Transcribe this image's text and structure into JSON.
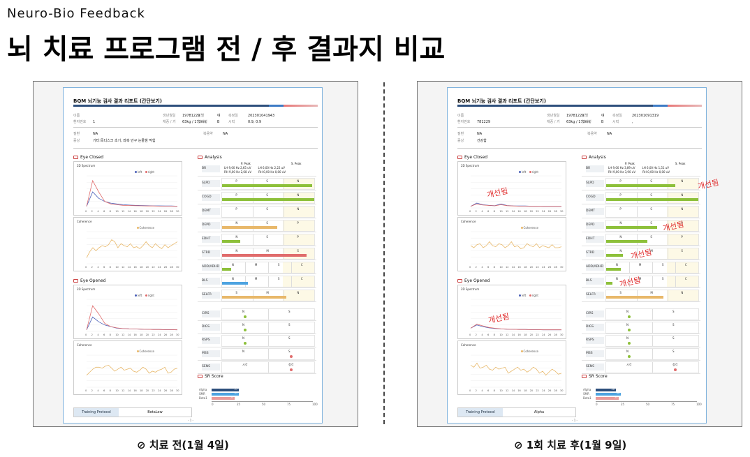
{
  "header": {
    "kicker": "Neuro-Bio Feedback",
    "title": "뇌 치료 프로그램 전 / 후 결과지 비교"
  },
  "captions": {
    "before": "⊘ 치료 전(1월 4일)",
    "after": "⊘ 1회 치료 후(1월 9일)"
  },
  "improved_label": "개선됨",
  "colors": {
    "left": "#4a5fb8",
    "right": "#e06c6c",
    "coherence": "#e8b86a",
    "green": "#8dc03a",
    "orange": "#e8b86a",
    "red": "#e06c6c",
    "blue": "#4da3e0"
  },
  "reports": [
    {
      "report_title": "BQM 뇌기능 검사 결과 리포트 (간단보기)",
      "info": {
        "name_label": "이름",
        "name": "",
        "birth_label": "생년월일",
        "birth": "19781229",
        "sex_label": "성별",
        "sex": "여",
        "date_label": "측정일",
        "date": "202301041943",
        "patient_no_label": "환자번호",
        "patient_no": "1",
        "body_label": "체중 / 키",
        "body": "63kg / 173cm",
        "blood_label": "혈액형",
        "blood": "B",
        "vision_label": "시력",
        "vision": "0.9, 0.9",
        "disease_label": "질환",
        "disease": "NA",
        "med_label": "복용약",
        "med": "NA",
        "symptom_label": "증상",
        "symptom": "기타:목디스크 초기, 좌측 안구 눈물샘 막힘"
      },
      "sections": {
        "eye_closed": "Eye Closed",
        "eye_opened": "Eye Opened",
        "analysis": "Analysis",
        "sr": "SR Score"
      },
      "panels": {
        "spectrum": "2D Spectrum",
        "coherence": "Coherence",
        "left": "left",
        "right": "right",
        "coh_legend": "Coherence"
      },
      "br": {
        "label": "BR",
        "p_peak": "P. Peak",
        "s_peak": "S. Peak",
        "lh": "LH",
        "rh": "RH",
        "lh_p": "9,00",
        "lh_p2": "2,65",
        "rh_p": "9,00",
        "rh_p2": "2,68",
        "lh_s": "6,00",
        "lh_s2": "2,22",
        "rh_s": "0,00",
        "rh_s2": "0,00",
        "hz": "Hz",
        "uv": "uV"
      },
      "metrics": [
        {
          "label": "SLPD",
          "ticks": [
            "P",
            "S",
            "N"
          ],
          "bar": 0.98,
          "color": "green"
        },
        {
          "label": "COGD",
          "ticks": [
            "P",
            "S",
            "N"
          ],
          "bar": 1.0,
          "color": "green"
        },
        {
          "label": "DEMT",
          "ticks": [
            "P",
            "S",
            "N"
          ],
          "bar": 0,
          "color": "green"
        },
        {
          "label": "DEPD",
          "ticks": [
            "N",
            "S",
            "P"
          ],
          "bar": 0.6,
          "color": "orange"
        },
        {
          "label": "EDHT",
          "ticks": [
            "N",
            "S",
            "P"
          ],
          "bar": 0.2,
          "color": "green"
        },
        {
          "label": "STRD",
          "ticks": [
            "N",
            "M",
            "S"
          ],
          "bar": 0.92,
          "color": "red"
        },
        {
          "label": "ADD/ADHD",
          "ticks": [
            "N",
            "M",
            "S",
            "C"
          ],
          "bar": 0.1,
          "color": "green"
        },
        {
          "label": "BLS",
          "ticks": [
            "N",
            "M",
            "S",
            "C"
          ],
          "bar": 0.28,
          "color": "blue"
        },
        {
          "label": "SELFR",
          "ticks": [
            "S",
            "M",
            "N"
          ],
          "bar": 0.7,
          "color": "orange"
        }
      ],
      "dots": [
        {
          "label": "CIRS",
          "ticks": [
            "N",
            "S"
          ],
          "pos": 0.25,
          "color": "green"
        },
        {
          "label": "DIGS",
          "ticks": [
            "N",
            "S"
          ],
          "pos": 0.25,
          "color": "green"
        },
        {
          "label": "RSPS",
          "ticks": [
            "N",
            "S"
          ],
          "pos": 0.25,
          "color": "green"
        },
        {
          "label": "MSS",
          "ticks": [
            "N",
            "S"
          ],
          "pos": 0.75,
          "color": "red"
        },
        {
          "label": "SENS",
          "ticks": [
            "시각",
            "청각"
          ],
          "pos": 0.75,
          "color": "red"
        }
      ],
      "sr": {
        "labels": [
          "Alpha",
          "SMR",
          "Beta1"
        ],
        "values": [
          27,
          27,
          23
        ],
        "axis": [
          "0",
          "25",
          "50",
          "75",
          "100"
        ],
        "vals_text": [
          "27",
          "27",
          "23"
        ]
      },
      "training": {
        "label": "Training Protocol",
        "value": "BetaLow"
      },
      "page": "- 1 -",
      "spectrum_closed": {
        "left": [
          1,
          10,
          6,
          4,
          3,
          2.5,
          2,
          1.8,
          1.6,
          1.5,
          1.4,
          1.3,
          1.3,
          1.2,
          1.2,
          1.1
        ],
        "right": [
          1,
          17,
          10,
          4,
          2.5,
          2,
          1.6,
          1.5,
          1.4,
          1.3,
          1.2,
          1.2,
          1.1,
          1.1,
          1.1,
          1.0
        ]
      },
      "coh_closed": [
        0.3,
        0.6,
        0.8,
        0.65,
        0.8,
        0.9,
        0.85,
        0.95,
        1.2,
        1.1,
        0.8,
        1.0,
        0.9,
        0.85,
        1.0,
        0.8,
        0.85,
        0.75,
        0.9,
        1.1,
        0.9,
        0.8,
        1.0,
        0.85,
        0.75,
        0.95,
        0.8,
        0.9,
        1.0,
        1.1
      ],
      "spectrum_opened": {
        "left": [
          1,
          9,
          6,
          4,
          3,
          2,
          1.8,
          1.6,
          1.5,
          1.4,
          1.3,
          1.2,
          1.2,
          1.1,
          1.1,
          1.0
        ],
        "right": [
          1,
          16,
          11,
          5,
          3,
          2.2,
          1.8,
          1.6,
          1.5,
          1.4,
          1.3,
          1.2,
          1.2,
          1.1,
          1.1,
          1.0
        ]
      },
      "coh_opened": [
        0.6,
        0.75,
        0.9,
        1.0,
        1.0,
        0.95,
        1.05,
        1.1,
        0.95,
        0.8,
        0.9,
        1.0,
        0.85,
        0.9,
        0.95,
        0.8,
        0.75,
        0.85,
        1.0,
        0.9,
        0.7,
        0.8,
        0.75,
        0.85,
        0.9,
        1.0,
        0.7,
        0.75,
        0.9,
        0.95
      ],
      "improved_marks": []
    },
    {
      "report_title": "BQM 뇌기능 검사 결과 리포트 (간단보기)",
      "info": {
        "name_label": "이름",
        "name": "",
        "birth_label": "생년월일",
        "birth": "19781229",
        "sex_label": "성별",
        "sex": "여",
        "date_label": "측정일",
        "date": "202301091319",
        "patient_no_label": "환자번호",
        "patient_no": "781229",
        "body_label": "체중 / 키",
        "body": "63kg / 173cm",
        "blood_label": "혈액형",
        "blood": "B",
        "vision_label": "시력",
        "vision": ",",
        "disease_label": "질환",
        "disease": "NA",
        "med_label": "복용약",
        "med": "NA",
        "symptom_label": "증상",
        "symptom": "건강함"
      },
      "sections": {
        "eye_closed": "Eye Closed",
        "eye_opened": "Eye Opened",
        "analysis": "Analysis",
        "sr": "SR Score"
      },
      "panels": {
        "spectrum": "2D Spectrum",
        "coherence": "Coherence",
        "left": "left",
        "right": "right",
        "coh_legend": "Coherence"
      },
      "br": {
        "label": "BR",
        "p_peak": "P. Peak",
        "s_peak": "S. Peak",
        "lh": "LH",
        "rh": "RH",
        "lh_p": "9,00",
        "lh_p2": "3,89",
        "rh_p": "9,00",
        "rh_p2": "3,90",
        "lh_s": "6,00",
        "lh_s2": "1,51",
        "rh_s": "0,00",
        "rh_s2": "0,00",
        "hz": "Hz",
        "uv": "uV"
      },
      "metrics": [
        {
          "label": "SLPD",
          "ticks": [
            "P",
            "S",
            "N"
          ],
          "bar": 0.75,
          "color": "green"
        },
        {
          "label": "COGD",
          "ticks": [
            "P",
            "S",
            "N"
          ],
          "bar": 1.0,
          "color": "green"
        },
        {
          "label": "DEMT",
          "ticks": [
            "P",
            "S",
            "N"
          ],
          "bar": 0,
          "color": "green"
        },
        {
          "label": "DEPD",
          "ticks": [
            "N",
            "S",
            "P"
          ],
          "bar": 0.55,
          "color": "green"
        },
        {
          "label": "EDHT",
          "ticks": [
            "N",
            "S",
            "P"
          ],
          "bar": 0.45,
          "color": "green"
        },
        {
          "label": "STRD",
          "ticks": [
            "N",
            "M",
            "S"
          ],
          "bar": 0.18,
          "color": "green"
        },
        {
          "label": "ADD/ADHD",
          "ticks": [
            "N",
            "M",
            "S",
            "C"
          ],
          "bar": 0.16,
          "color": "green"
        },
        {
          "label": "BLS",
          "ticks": [
            "N",
            "M",
            "S",
            "C"
          ],
          "bar": 0.07,
          "color": "green"
        },
        {
          "label": "SELFR",
          "ticks": [
            "S",
            "M",
            "N"
          ],
          "bar": 0.62,
          "color": "orange"
        }
      ],
      "dots": [
        {
          "label": "CIRS",
          "ticks": [
            "N",
            "S"
          ],
          "pos": 0.25,
          "color": "green"
        },
        {
          "label": "DIGS",
          "ticks": [
            "N",
            "S"
          ],
          "pos": 0.25,
          "color": "green"
        },
        {
          "label": "RSPS",
          "ticks": [
            "N",
            "S"
          ],
          "pos": 0.25,
          "color": "green"
        },
        {
          "label": "MSS",
          "ticks": [
            "N",
            "S"
          ],
          "pos": 0.25,
          "color": "green"
        },
        {
          "label": "SENS",
          "ticks": [
            "시각",
            "청각"
          ],
          "pos": 0.75,
          "color": "red"
        }
      ],
      "sr": {
        "labels": [
          "Alpha",
          "SMR",
          "Beta1"
        ],
        "values": [
          20,
          25,
          23
        ],
        "axis": [
          "0",
          "25",
          "50",
          "75",
          "100"
        ],
        "vals_text": [
          "20",
          "25",
          "23"
        ]
      },
      "training": {
        "label": "Training Protocol",
        "value": "Alpha"
      },
      "page": "- 1 -",
      "spectrum_closed": {
        "left": [
          1,
          3,
          2,
          1.6,
          1.4,
          2.5,
          1.5,
          1.3,
          1.2,
          1.2,
          1.1,
          1.1,
          1.0,
          1.0,
          1.0,
          1.0
        ],
        "right": [
          1,
          2.5,
          1.8,
          1.5,
          1.3,
          2.0,
          1.4,
          1.2,
          1.1,
          1.1,
          1.0,
          1.0,
          1.0,
          1.0,
          1.0,
          1.0
        ]
      },
      "coh_closed": [
        0.9,
        0.8,
        0.95,
        1.0,
        0.8,
        0.9,
        1.1,
        0.9,
        0.85,
        1.0,
        0.95,
        0.8,
        0.9,
        1.1,
        0.85,
        0.9,
        0.75,
        0.8,
        1.0,
        0.9,
        0.85,
        1.0,
        0.8,
        0.9,
        0.85,
        0.8,
        0.95,
        0.8,
        0.8,
        0.85
      ],
      "spectrum_opened": {
        "left": [
          2,
          4,
          3,
          2.2,
          1.8,
          1.5,
          1.4,
          1.3,
          1.2,
          1.2,
          1.1,
          1.1,
          1.0,
          1.0,
          1.0,
          1.0
        ],
        "right": [
          2,
          4.5,
          3.5,
          2.5,
          2.0,
          1.6,
          1.4,
          1.3,
          1.2,
          1.2,
          1.1,
          1.1,
          1.0,
          1.0,
          1.0,
          1.0
        ]
      },
      "coh_opened": [
        1.1,
        1.0,
        1.2,
        0.95,
        1.0,
        1.1,
        0.9,
        0.85,
        1.0,
        0.9,
        0.95,
        1.0,
        0.7,
        0.8,
        0.9,
        1.0,
        0.85,
        0.9,
        0.75,
        0.85,
        1.0,
        0.9,
        0.7,
        0.8,
        0.6,
        0.75,
        0.9,
        0.8,
        0.65,
        0.7
      ],
      "improved_marks": [
        "spec_closed",
        "spec_opened",
        "SLPD",
        "DEPD",
        "STRD",
        "BLS"
      ]
    }
  ]
}
